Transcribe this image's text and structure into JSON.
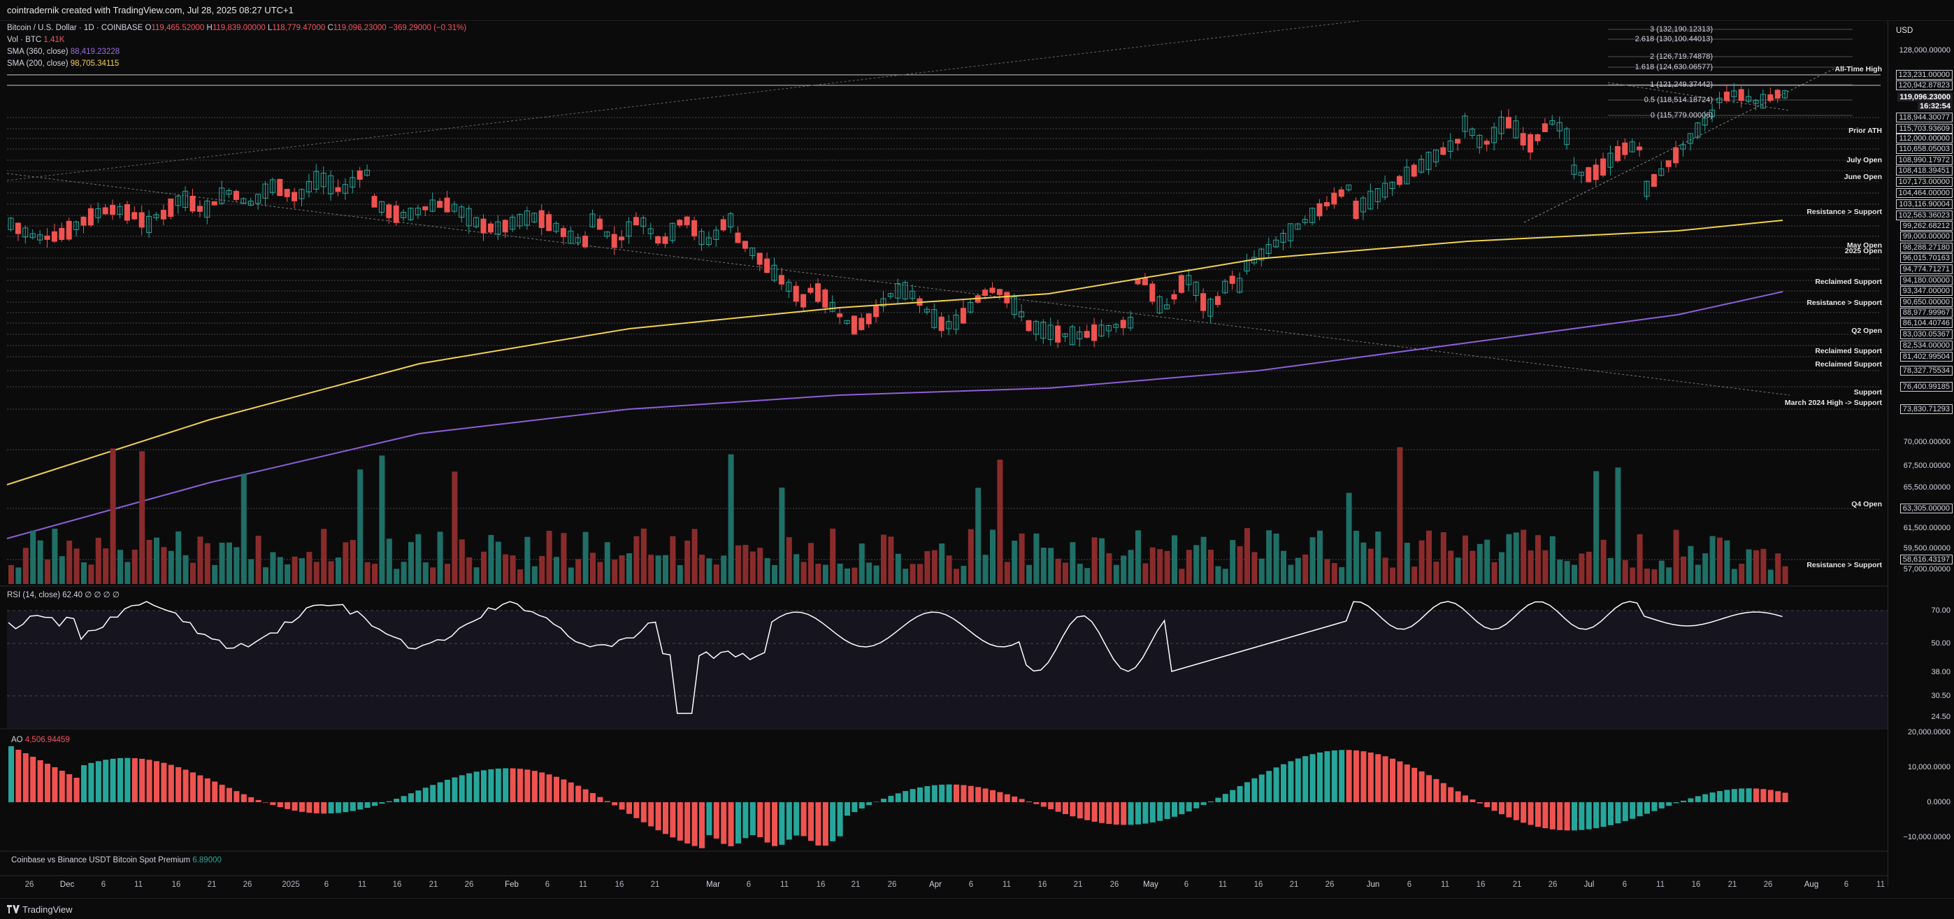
{
  "header": {
    "text": "cointradernik created with TradingView.com, Jul 28, 2025 08:27 UTC+1"
  },
  "legend": {
    "title": "Bitcoin / U.S. Dollar · 1D · COINBASE",
    "ohlc": {
      "o_label": "O",
      "o": "119,465.52000",
      "h_label": "H",
      "h": "119,839.00000",
      "l_label": "L",
      "l": "118,779.47000",
      "c_label": "C",
      "c": "119,096.23000",
      "chg": "−369.29000 (−0.31%)"
    },
    "vol_label": "Vol · BTC",
    "vol": "1.41K",
    "sma360_label": "SMA (360, close)",
    "sma360": "88,419.23228",
    "sma200_label": "SMA (200, close)",
    "sma200": "98,705.34115"
  },
  "axis": {
    "currency": "USD"
  },
  "price_labels": [
    {
      "t": "128,000.00000",
      "y": 72,
      "s": ""
    },
    {
      "t": "123,231.00000",
      "y": 107,
      "s": "box"
    },
    {
      "t": "120,942.87823",
      "y": 122,
      "s": "box"
    },
    {
      "t": "119,096.23000",
      "y": 139,
      "s": "cur"
    },
    {
      "t": "16:32:54",
      "y": 152,
      "s": "cur"
    },
    {
      "t": "118,944.30077",
      "y": 168,
      "s": "box"
    },
    {
      "t": "115,703.93609",
      "y": 184,
      "s": "box"
    },
    {
      "t": "112,000.00000",
      "y": 198,
      "s": "box"
    },
    {
      "t": "110,658.05003",
      "y": 213,
      "s": "box"
    },
    {
      "t": "108,990.17972",
      "y": 229,
      "s": "box"
    },
    {
      "t": "108,418.39451",
      "y": 244,
      "s": "box"
    },
    {
      "t": "107,173.00000",
      "y": 260,
      "s": "box"
    },
    {
      "t": "104,464.00000",
      "y": 276,
      "s": "box"
    },
    {
      "t": "103,116.90004",
      "y": 292,
      "s": "box"
    },
    {
      "t": "102,563.36023",
      "y": 308,
      "s": "box"
    },
    {
      "t": "99,262.68212",
      "y": 323,
      "s": "box"
    },
    {
      "t": "99,000.00000",
      "y": 338,
      "s": "box"
    },
    {
      "t": "98,288.27180",
      "y": 354,
      "s": "box"
    },
    {
      "t": "96,015.70163",
      "y": 369,
      "s": "box"
    },
    {
      "t": "94,774.71271",
      "y": 385,
      "s": "box"
    },
    {
      "t": "94,180.00000",
      "y": 401,
      "s": "box"
    },
    {
      "t": "93,347.00000",
      "y": 416,
      "s": "box"
    },
    {
      "t": "90,650.00000",
      "y": 432,
      "s": "box"
    },
    {
      "t": "88,977.99967",
      "y": 447,
      "s": "box"
    },
    {
      "t": "86,104.40746",
      "y": 462,
      "s": "box"
    },
    {
      "t": "83,030.05367",
      "y": 478,
      "s": "box"
    },
    {
      "t": "82,534.00000",
      "y": 494,
      "s": "box"
    },
    {
      "t": "81,402.99504",
      "y": 510,
      "s": "box"
    },
    {
      "t": "78,327.75534",
      "y": 530,
      "s": "box"
    },
    {
      "t": "76,400.99185",
      "y": 553,
      "s": "box"
    },
    {
      "t": "73,830.71293",
      "y": 585,
      "s": "box"
    },
    {
      "t": "70,000.00000",
      "y": 632,
      "s": ""
    },
    {
      "t": "67,500.00000",
      "y": 666,
      "s": ""
    },
    {
      "t": "65,500.00000",
      "y": 697,
      "s": ""
    },
    {
      "t": "63,305.00000",
      "y": 727,
      "s": "box"
    },
    {
      "t": "61,500.00000",
      "y": 755,
      "s": ""
    },
    {
      "t": "59,500.00000",
      "y": 784,
      "s": ""
    },
    {
      "t": "58,616.43197",
      "y": 800,
      "s": "box"
    },
    {
      "t": "57,000.00000",
      "y": 814,
      "s": ""
    }
  ],
  "annotations": [
    {
      "t": "All-Time High",
      "y": 99
    },
    {
      "t": "Prior ATH",
      "y": 187
    },
    {
      "t": "July Open",
      "y": 229
    },
    {
      "t": "June Open",
      "y": 253
    },
    {
      "t": "Resistance > Support",
      "y": 303
    },
    {
      "t": "May Open",
      "y": 351
    },
    {
      "t": "2025 Open",
      "y": 359
    },
    {
      "t": "Reclaimed Support",
      "y": 403
    },
    {
      "t": "Resistance > Support",
      "y": 433
    },
    {
      "t": "Q2 Open",
      "y": 473
    },
    {
      "t": "Reclaimed Support",
      "y": 502
    },
    {
      "t": "Reclaimed Support",
      "y": 521
    },
    {
      "t": "Support",
      "y": 561
    },
    {
      "t": "March 2024 High -> Support",
      "y": 576
    },
    {
      "t": "Q4 Open",
      "y": 721
    },
    {
      "t": "Resistance > Support",
      "y": 808
    }
  ],
  "fib_levels": [
    {
      "t": "3 (132,190.12313)",
      "y": 42
    },
    {
      "t": "2.618 (130,100.44013)",
      "y": 56
    },
    {
      "t": "2 (126,719.74878)",
      "y": 81
    },
    {
      "t": "1.618 (124,630.06577)",
      "y": 96
    },
    {
      "t": "1 (121,249.37442)",
      "y": 121
    },
    {
      "t": "0.5 (118,514.18724)",
      "y": 143
    },
    {
      "t": "0 (115,779.00006)",
      "y": 165
    }
  ],
  "rsi": {
    "label": "RSI (14, close)",
    "value": "62.40",
    "extra": "∅ ∅ ∅ ∅",
    "levels": [
      "70.00",
      "50.00",
      "38.00",
      "30.50",
      "24.50"
    ]
  },
  "ao": {
    "label": "AO",
    "value": "4,506.94459",
    "levels": [
      "20,000.0000",
      "10,000.0000",
      "0.0000",
      "−10,000.0000"
    ]
  },
  "premium": {
    "label": "Coinbase vs Binance USDT Bitcoin Spot Premium",
    "value": "6.89000"
  },
  "x_ticks": [
    {
      "t": "26",
      "x": 42
    },
    {
      "t": "Dec",
      "x": 96
    },
    {
      "t": "6",
      "x": 148
    },
    {
      "t": "11",
      "x": 198
    },
    {
      "t": "16",
      "x": 252
    },
    {
      "t": "21",
      "x": 303
    },
    {
      "t": "26",
      "x": 354
    },
    {
      "t": "2025",
      "x": 416
    },
    {
      "t": "6",
      "x": 467
    },
    {
      "t": "11",
      "x": 518
    },
    {
      "t": "16",
      "x": 568
    },
    {
      "t": "21",
      "x": 620
    },
    {
      "t": "26",
      "x": 671
    },
    {
      "t": "Feb",
      "x": 732
    },
    {
      "t": "6",
      "x": 783
    },
    {
      "t": "11",
      "x": 834
    },
    {
      "t": "16",
      "x": 886
    },
    {
      "t": "21",
      "x": 937
    },
    {
      "t": "Mar",
      "x": 1020
    },
    {
      "t": "6",
      "x": 1071
    },
    {
      "t": "11",
      "x": 1122
    },
    {
      "t": "16",
      "x": 1174
    },
    {
      "t": "21",
      "x": 1224
    },
    {
      "t": "26",
      "x": 1276
    },
    {
      "t": "Apr",
      "x": 1338
    },
    {
      "t": "6",
      "x": 1389
    },
    {
      "t": "11",
      "x": 1440
    },
    {
      "t": "16",
      "x": 1491
    },
    {
      "t": "21",
      "x": 1542
    },
    {
      "t": "26",
      "x": 1594
    },
    {
      "t": "May",
      "x": 1646
    },
    {
      "t": "6",
      "x": 1697
    },
    {
      "t": "11",
      "x": 1749
    },
    {
      "t": "16",
      "x": 1800
    },
    {
      "t": "21",
      "x": 1851
    },
    {
      "t": "26",
      "x": 1902
    },
    {
      "t": "Jun",
      "x": 1964
    },
    {
      "t": "6",
      "x": 2016
    },
    {
      "t": "11",
      "x": 2067
    },
    {
      "t": "16",
      "x": 2118
    },
    {
      "t": "21",
      "x": 2170
    },
    {
      "t": "26",
      "x": 2221
    },
    {
      "t": "Jul",
      "x": 2273
    },
    {
      "t": "6",
      "x": 2324
    },
    {
      "t": "11",
      "x": 2375
    },
    {
      "t": "16",
      "x": 2426
    },
    {
      "t": "21",
      "x": 2478
    },
    {
      "t": "26",
      "x": 2529
    },
    {
      "t": "Aug",
      "x": 2591
    },
    {
      "t": "6",
      "x": 2641
    },
    {
      "t": "11",
      "x": 2690
    }
  ],
  "footer": {
    "brand": "TradingView"
  },
  "colors": {
    "bull": "#26a69a",
    "bear": "#ef5350",
    "sma200": "#f1d24a",
    "sma360": "#8e5fd8",
    "bg": "#0b0b0c"
  }
}
